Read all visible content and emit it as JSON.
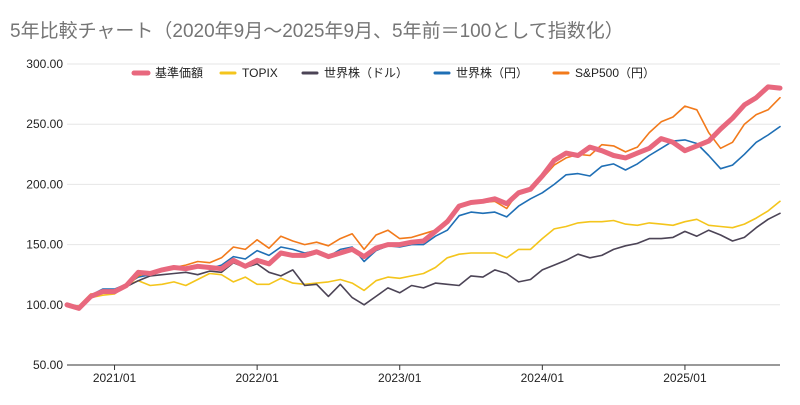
{
  "chart_data": {
    "type": "line",
    "title": "5年比較チャート（2020年9月～2025年9月、5年前＝100として指数化）",
    "ylim": [
      50,
      300
    ],
    "y_ticks": [
      "50.00",
      "100.00",
      "150.00",
      "200.00",
      "250.00",
      "300.00"
    ],
    "y_tick_values": [
      50,
      100,
      150,
      200,
      250,
      300
    ],
    "x_ticks": [
      "2021/01",
      "2022/01",
      "2023/01",
      "2024/01",
      "2025/01"
    ],
    "x_tick_index": [
      4,
      16,
      28,
      40,
      52
    ],
    "x": [
      "2020/09",
      "2020/10",
      "2020/11",
      "2020/12",
      "2021/01",
      "2021/02",
      "2021/03",
      "2021/04",
      "2021/05",
      "2021/06",
      "2021/07",
      "2021/08",
      "2021/09",
      "2021/10",
      "2021/11",
      "2021/12",
      "2022/01",
      "2022/02",
      "2022/03",
      "2022/04",
      "2022/05",
      "2022/06",
      "2022/07",
      "2022/08",
      "2022/09",
      "2022/10",
      "2022/11",
      "2022/12",
      "2023/01",
      "2023/02",
      "2023/03",
      "2023/04",
      "2023/05",
      "2023/06",
      "2023/07",
      "2023/08",
      "2023/09",
      "2023/10",
      "2023/11",
      "2023/12",
      "2024/01",
      "2024/02",
      "2024/03",
      "2024/04",
      "2024/05",
      "2024/06",
      "2024/07",
      "2024/08",
      "2024/09",
      "2024/10",
      "2024/11",
      "2024/12",
      "2025/01",
      "2025/02",
      "2025/03",
      "2025/04",
      "2025/05",
      "2025/06",
      "2025/07",
      "2025/08",
      "2025/09"
    ],
    "legend_position": "top",
    "grid": true,
    "series": [
      {
        "name": "基準価額",
        "color": "#e8687e",
        "width": 5,
        "values": [
          100,
          97,
          107,
          111,
          111,
          116,
          127,
          126,
          129,
          131,
          130,
          132,
          131,
          130,
          137,
          132,
          137,
          134,
          143,
          141,
          141,
          144,
          140,
          143,
          146,
          140,
          147,
          150,
          150,
          152,
          153,
          161,
          169,
          182,
          185,
          186,
          188,
          184,
          193,
          196,
          207,
          220,
          226,
          224,
          231,
          228,
          224,
          222,
          226,
          230,
          238,
          235,
          228,
          232,
          236,
          246,
          255,
          266,
          272,
          281,
          280
        ]
      },
      {
        "name": "TOPIX",
        "color": "#f4c51c",
        "width": 1.6,
        "values": [
          100,
          96,
          106,
          108,
          109,
          116,
          120,
          116,
          117,
          119,
          116,
          121,
          126,
          125,
          119,
          123,
          117,
          117,
          122,
          118,
          117,
          118,
          119,
          121,
          118,
          112,
          120,
          123,
          122,
          124,
          126,
          131,
          139,
          142,
          143,
          143,
          143,
          139,
          146,
          146,
          155,
          163,
          165,
          168,
          169,
          169,
          170,
          167,
          166,
          168,
          167,
          166,
          169,
          171,
          166,
          165,
          164,
          167,
          172,
          178,
          186
        ]
      },
      {
        "name": "世界株（ドル）",
        "color": "#4c4456",
        "width": 1.6,
        "values": [
          100,
          97,
          108,
          112,
          111,
          115,
          120,
          124,
          125,
          126,
          127,
          125,
          128,
          127,
          135,
          131,
          134,
          127,
          124,
          129,
          116,
          117,
          107,
          117,
          106,
          100,
          107,
          114,
          110,
          116,
          114,
          118,
          117,
          116,
          124,
          123,
          129,
          126,
          119,
          121,
          129,
          133,
          137,
          142,
          139,
          141,
          146,
          149,
          151,
          155,
          155,
          156,
          161,
          157,
          162,
          158,
          153,
          156,
          164,
          171,
          176
        ]
      },
      {
        "name": "世界株（円）",
        "color": "#1f6fb5",
        "width": 1.6,
        "values": [
          100,
          98,
          108,
          113,
          113,
          117,
          123,
          125,
          128,
          131,
          131,
          133,
          130,
          133,
          140,
          138,
          145,
          141,
          148,
          146,
          143,
          145,
          140,
          146,
          148,
          136,
          145,
          149,
          148,
          150,
          150,
          157,
          162,
          174,
          177,
          176,
          177,
          173,
          182,
          188,
          193,
          200,
          208,
          209,
          207,
          215,
          217,
          212,
          217,
          224,
          230,
          236,
          237,
          234,
          224,
          213,
          216,
          225,
          235,
          241,
          248
        ]
      },
      {
        "name": "S&P500（円）",
        "color": "#f27a1b",
        "width": 1.6,
        "values": [
          100,
          99,
          109,
          110,
          111,
          115,
          124,
          127,
          128,
          131,
          133,
          136,
          135,
          139,
          148,
          146,
          154,
          147,
          157,
          153,
          150,
          152,
          149,
          155,
          159,
          146,
          158,
          162,
          155,
          156,
          159,
          162,
          171,
          182,
          185,
          185,
          186,
          180,
          194,
          196,
          205,
          216,
          222,
          225,
          224,
          233,
          232,
          227,
          231,
          243,
          252,
          256,
          265,
          262,
          243,
          230,
          235,
          250,
          258,
          262,
          272
        ]
      }
    ]
  }
}
